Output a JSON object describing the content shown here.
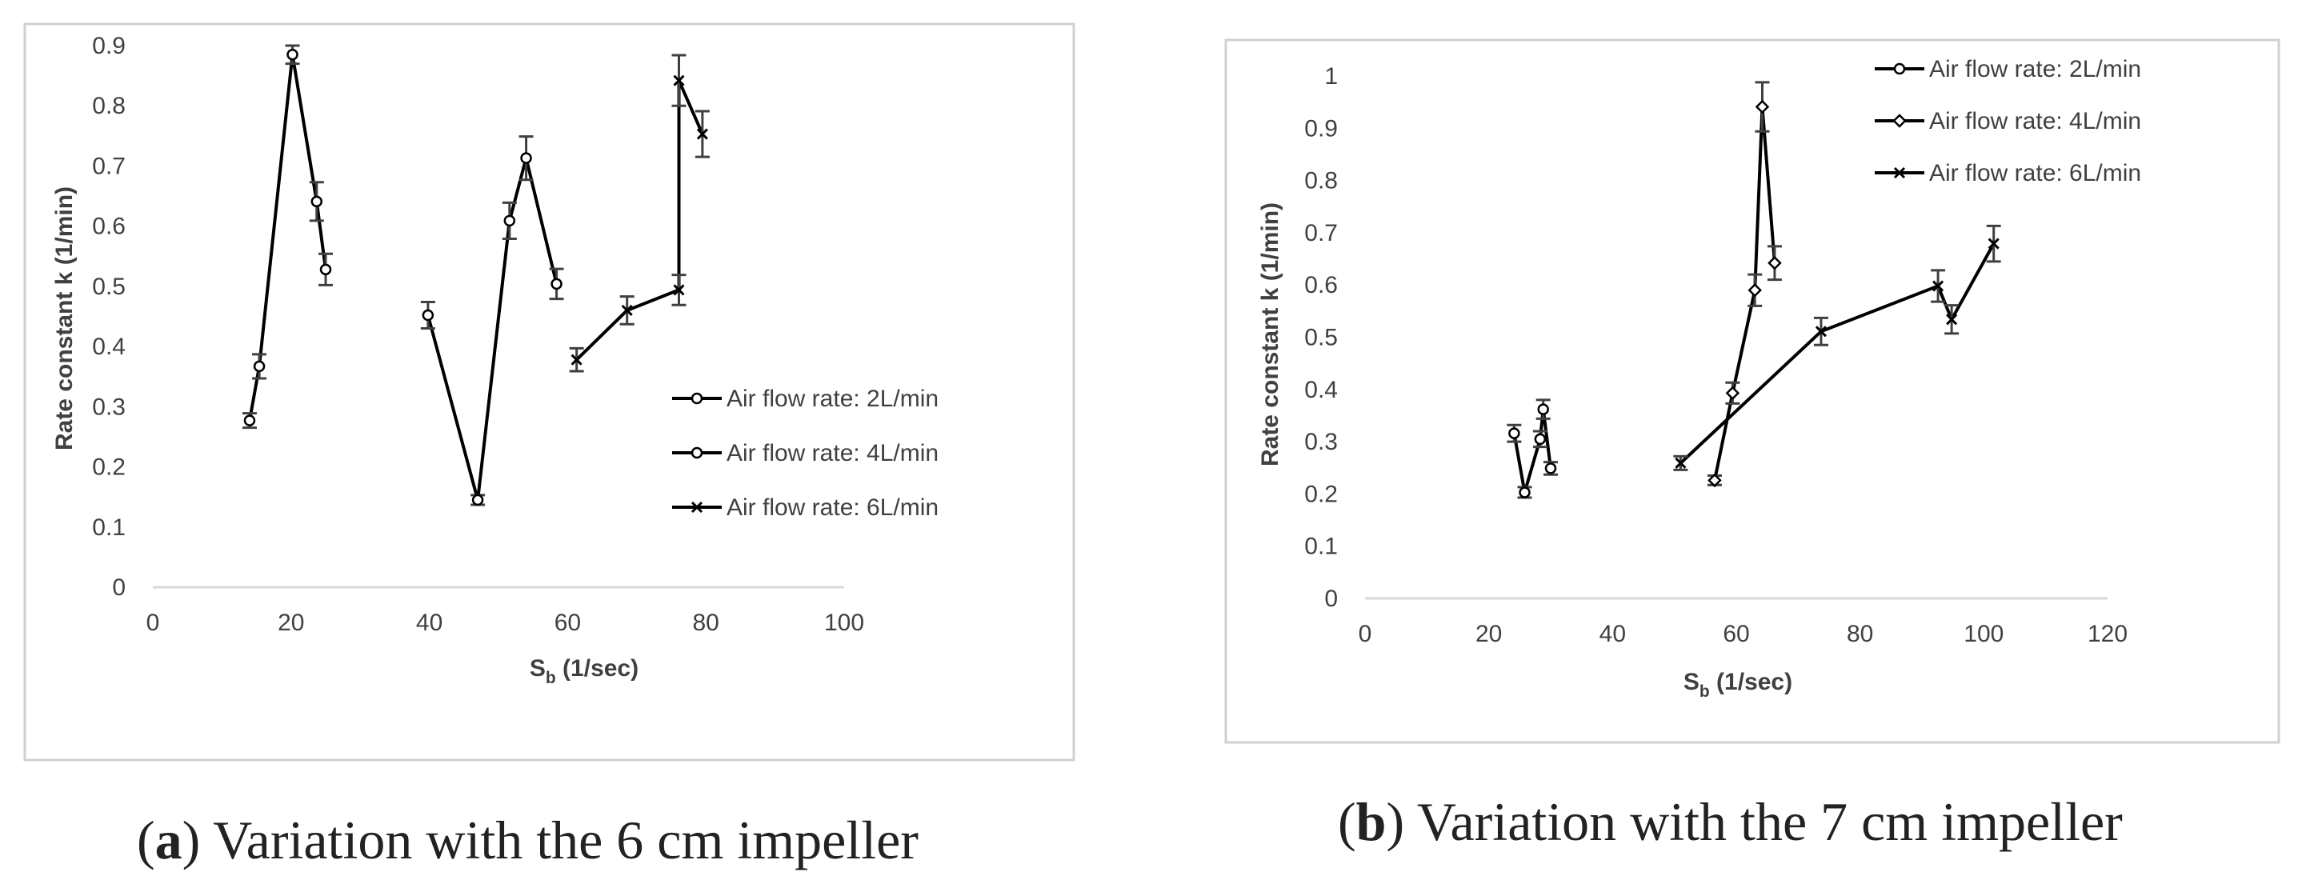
{
  "chart_data": [
    {
      "type": "scatter",
      "caption_letter": "a",
      "caption_text": "Variation with the 6 cm impeller",
      "xlabel_main": "S",
      "xlabel_sub": "b",
      "xlabel_unit": " (1/sec)",
      "ylabel": "Rate constant k (1/min)",
      "xlim": [
        0,
        100
      ],
      "ylim": [
        0,
        0.9
      ],
      "xticks": [
        0,
        20,
        40,
        60,
        80,
        100
      ],
      "yticks": [
        0,
        0.1,
        0.2,
        0.3,
        0.4,
        0.5,
        0.6,
        0.7,
        0.8,
        0.9
      ],
      "xtick_labels": [
        "0",
        "20",
        "40",
        "60",
        "80",
        "100"
      ],
      "ytick_labels": [
        "0",
        "0.1",
        "0.2",
        "0.3",
        "0.4",
        "0.5",
        "0.6",
        "0.7",
        "0.8",
        "0.9"
      ],
      "legend_position": "right",
      "series": [
        {
          "name": "Air flow rate: 2L/min",
          "marker": "circle",
          "points": [
            {
              "x": 14,
              "y": 0.277,
              "err": 0.012
            },
            {
              "x": 15.4,
              "y": 0.367,
              "err": 0.02
            },
            {
              "x": 20.2,
              "y": 0.885,
              "err": 0.015
            },
            {
              "x": 23.7,
              "y": 0.641,
              "err": 0.032
            },
            {
              "x": 25,
              "y": 0.528,
              "err": 0.026
            }
          ]
        },
        {
          "name": "Air flow rate: 4L/min",
          "marker": "circle",
          "points": [
            {
              "x": 39.8,
              "y": 0.452,
              "err": 0.022
            },
            {
              "x": 47,
              "y": 0.145,
              "err": 0.008
            },
            {
              "x": 51.6,
              "y": 0.609,
              "err": 0.03
            },
            {
              "x": 54,
              "y": 0.713,
              "err": 0.036
            },
            {
              "x": 58.4,
              "y": 0.504,
              "err": 0.025
            }
          ]
        },
        {
          "name": "Air flow rate: 6L/min",
          "marker": "x",
          "points": [
            {
              "x": 61.3,
              "y": 0.378,
              "err": 0.019
            },
            {
              "x": 68.6,
              "y": 0.46,
              "err": 0.023
            },
            {
              "x": 76.1,
              "y": 0.494,
              "err": 0.025
            },
            {
              "x": 76.1,
              "y": 0.842,
              "err": 0.042
            },
            {
              "x": 79.5,
              "y": 0.753,
              "err": 0.038
            }
          ]
        }
      ]
    },
    {
      "type": "scatter",
      "caption_letter": "b",
      "caption_text": "Variation with the 7 cm impeller",
      "xlabel_main": "S",
      "xlabel_sub": "b",
      "xlabel_unit": " (1/sec)",
      "ylabel": "Rate constant k (1/min)",
      "xlim": [
        0,
        120
      ],
      "ylim": [
        0,
        1
      ],
      "xticks": [
        0,
        20,
        40,
        60,
        80,
        100,
        120
      ],
      "yticks": [
        0,
        0.1,
        0.2,
        0.3,
        0.4,
        0.5,
        0.6,
        0.7,
        0.8,
        0.9,
        1
      ],
      "xtick_labels": [
        "0",
        "20",
        "40",
        "60",
        "80",
        "100",
        "120"
      ],
      "ytick_labels": [
        "0",
        "0.1",
        "0.2",
        "0.3",
        "0.4",
        "0.5",
        "0.6",
        "0.7",
        "0.8",
        "0.9",
        "1"
      ],
      "legend_position": "top-right",
      "series": [
        {
          "name": "Air flow rate: 2L/min",
          "marker": "circle",
          "points": [
            {
              "x": 24.1,
              "y": 0.316,
              "err": 0.016
            },
            {
              "x": 25.8,
              "y": 0.203,
              "err": 0.01
            },
            {
              "x": 28.3,
              "y": 0.305,
              "err": 0.015
            },
            {
              "x": 28.8,
              "y": 0.362,
              "err": 0.018
            },
            {
              "x": 30,
              "y": 0.249,
              "err": 0.012
            }
          ]
        },
        {
          "name": "Air flow rate: 4L/min",
          "marker": "diamond",
          "points": [
            {
              "x": 56.5,
              "y": 0.226,
              "err": 0.009
            },
            {
              "x": 59.4,
              "y": 0.393,
              "err": 0.02
            },
            {
              "x": 63,
              "y": 0.59,
              "err": 0.03
            },
            {
              "x": 64.2,
              "y": 0.941,
              "err": 0.047
            },
            {
              "x": 66.2,
              "y": 0.642,
              "err": 0.032
            }
          ]
        },
        {
          "name": "Air flow rate: 6L/min",
          "marker": "x",
          "points": [
            {
              "x": 51,
              "y": 0.259,
              "err": 0.013
            },
            {
              "x": 73.7,
              "y": 0.511,
              "err": 0.026
            },
            {
              "x": 92.6,
              "y": 0.598,
              "err": 0.03
            },
            {
              "x": 94.8,
              "y": 0.534,
              "err": 0.027
            },
            {
              "x": 101.6,
              "y": 0.679,
              "err": 0.034
            }
          ]
        }
      ]
    }
  ]
}
